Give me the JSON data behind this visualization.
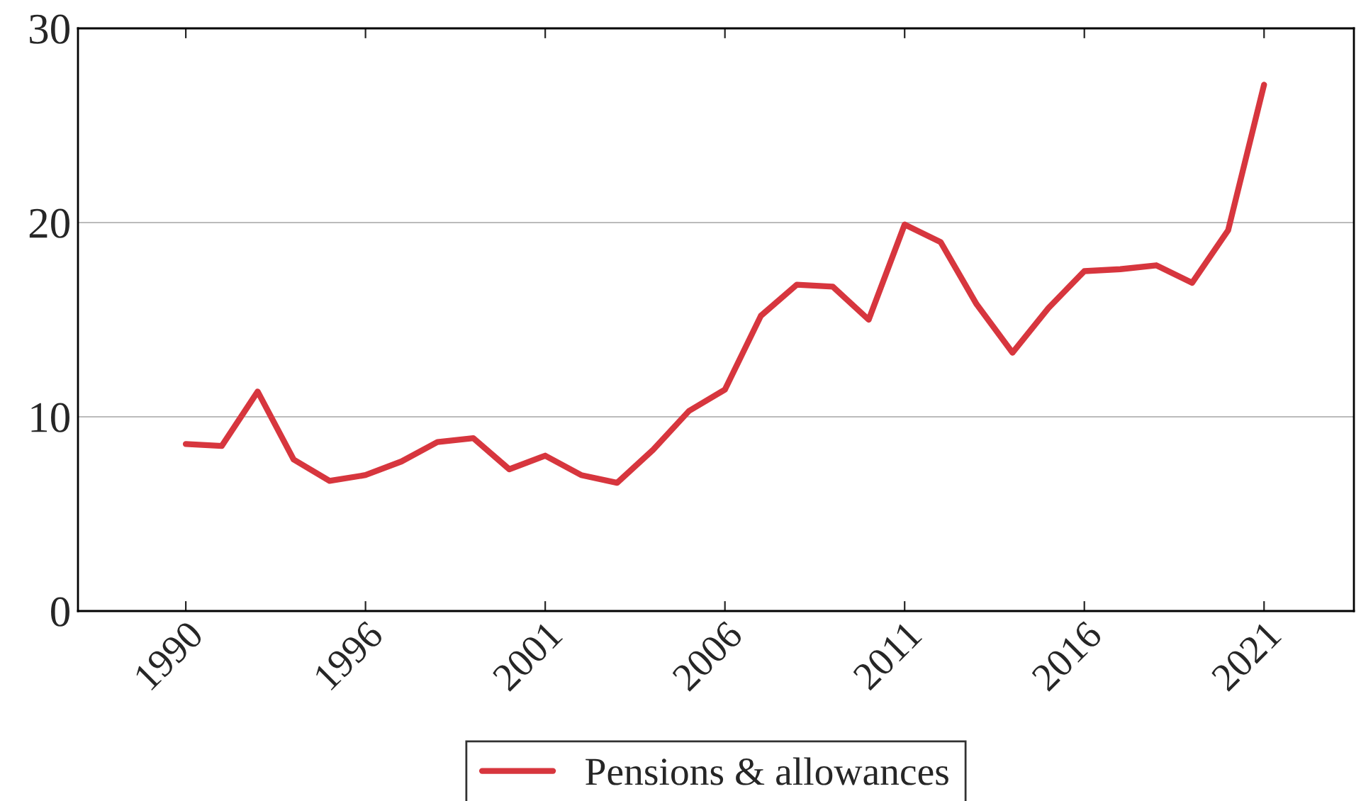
{
  "chart_data": {
    "type": "line",
    "categories": [
      "1990",
      null,
      null,
      null,
      null,
      "1996",
      null,
      null,
      null,
      null,
      "2001",
      null,
      null,
      null,
      null,
      "2006",
      null,
      null,
      null,
      null,
      "2011",
      null,
      null,
      null,
      null,
      "2016",
      null,
      null,
      null,
      null,
      "2021"
    ],
    "series": [
      {
        "name": "Pensions & allowances",
        "color": "#d7363e",
        "values": [
          8.6,
          8.5,
          11.3,
          7.8,
          6.7,
          7.0,
          7.7,
          8.7,
          8.9,
          7.3,
          8.0,
          7.0,
          6.6,
          8.3,
          10.3,
          11.4,
          15.2,
          16.8,
          16.7,
          15.0,
          19.9,
          19.0,
          15.8,
          13.3,
          15.6,
          17.5,
          17.6,
          17.8,
          16.9,
          19.6,
          27.1
        ]
      }
    ],
    "ylim": [
      0,
      30
    ],
    "yticks": [
      0,
      10,
      20,
      30
    ],
    "grid": "y",
    "legend": "bottom",
    "marker": "none",
    "line_style": "solid"
  }
}
